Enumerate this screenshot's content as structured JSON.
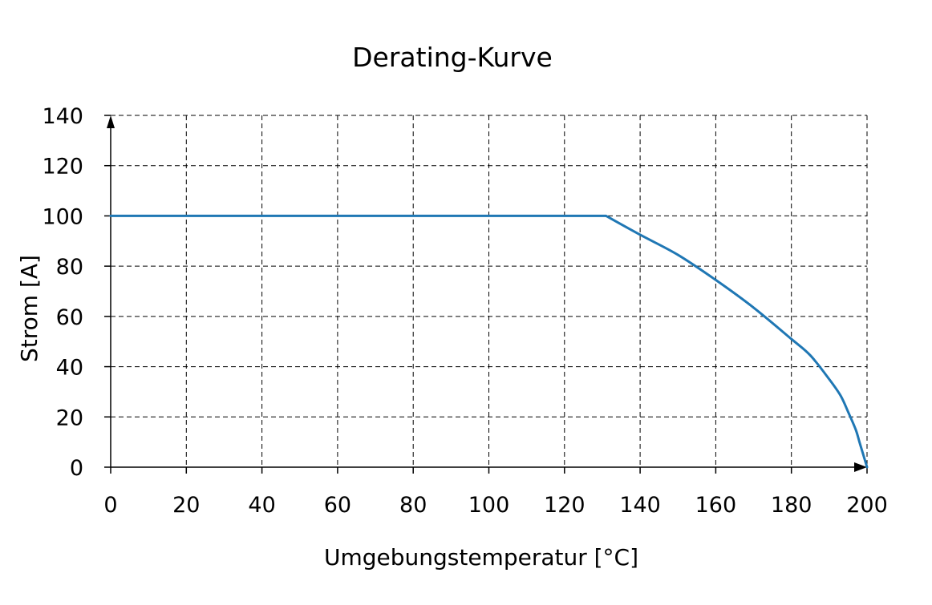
{
  "chart_data": {
    "type": "line",
    "title": "Derating-Kurve",
    "xlabel": "Umgebungstemperatur [°C]",
    "ylabel": "Strom [A]",
    "xlim": [
      0,
      200
    ],
    "ylim": [
      0,
      140
    ],
    "xticks": [
      0,
      20,
      40,
      60,
      80,
      100,
      120,
      140,
      160,
      180,
      200
    ],
    "yticks": [
      0,
      20,
      40,
      60,
      80,
      100,
      120,
      140
    ],
    "grid": true,
    "grid_style": "dashed",
    "series": [
      {
        "color": "#1f77b4",
        "x": [
          0,
          131,
          140,
          150,
          160,
          170,
          180,
          185,
          190,
          193,
          195,
          197,
          198,
          199,
          200
        ],
        "y": [
          100,
          100,
          92.5,
          84.5,
          74.5,
          63.5,
          51,
          44.5,
          35,
          28.5,
          22,
          15,
          10,
          5,
          0
        ]
      }
    ]
  }
}
